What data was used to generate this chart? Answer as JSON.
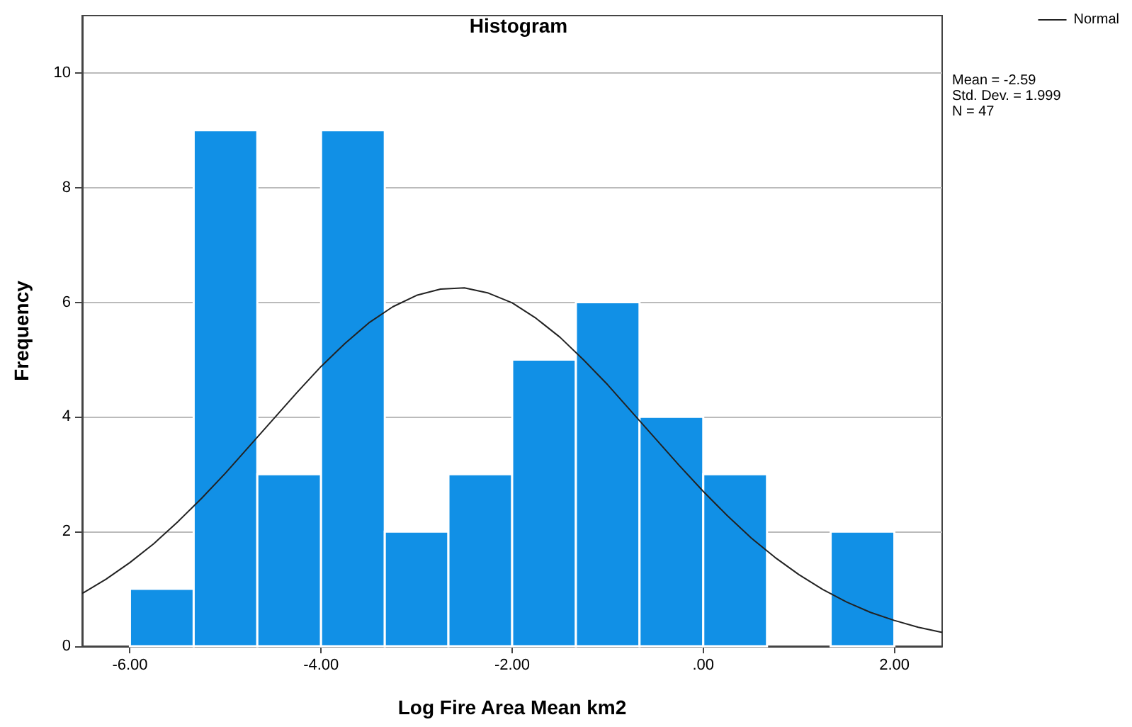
{
  "chart_data": {
    "type": "histogram",
    "title": "Histogram",
    "xlabel": "Log Fire Area Mean km2",
    "ylabel": "Frequency",
    "bins": [
      -6,
      -5.333,
      -4.667,
      -4,
      -3.333,
      -2.667,
      -2,
      -1.333,
      -0.667,
      0,
      0.667,
      1.333,
      2
    ],
    "values": [
      1,
      9,
      3,
      9,
      2,
      3,
      5,
      6,
      4,
      3,
      0,
      2
    ],
    "color": "#1190e6",
    "series": [
      {
        "type": "line",
        "name": "Normal",
        "color": "#222222",
        "x": [
          -6.5,
          -6.25,
          -6,
          -5.75,
          -5.5,
          -5.25,
          -5,
          -4.75,
          -4.5,
          -4.25,
          -4,
          -3.75,
          -3.5,
          -3.25,
          -3,
          -2.75,
          -2.5,
          -2.25,
          -2,
          -1.75,
          -1.5,
          -1.25,
          -1,
          -0.75,
          -0.5,
          -0.25,
          0,
          0.25,
          0.5,
          0.75,
          1,
          1.25,
          1.5,
          1.75,
          2,
          2.25,
          2.5
        ],
        "values": [
          0.92,
          1.17,
          1.46,
          1.79,
          2.17,
          2.58,
          3.02,
          3.49,
          3.96,
          4.43,
          4.88,
          5.28,
          5.64,
          5.92,
          6.12,
          6.23,
          6.25,
          6.16,
          5.99,
          5.72,
          5.39,
          4.99,
          4.56,
          4.09,
          3.62,
          3.15,
          2.7,
          2.28,
          1.89,
          1.55,
          1.25,
          0.99,
          0.77,
          0.59,
          0.45,
          0.33,
          0.24
        ]
      }
    ],
    "xlim": [
      -6.5,
      2.5
    ],
    "xticks": [
      {
        "value": -6,
        "label": "-6.00"
      },
      {
        "value": -4,
        "label": "-4.00"
      },
      {
        "value": -2,
        "label": "-2.00"
      },
      {
        "value": 0,
        "label": ".00"
      },
      {
        "value": 2,
        "label": "2.00"
      }
    ],
    "ylim": [
      0,
      11
    ],
    "yticks": [
      0,
      2,
      4,
      6,
      8,
      10
    ],
    "grid": "y",
    "legend": "top right",
    "marker": "none",
    "line_style": "solid",
    "annotations": [
      "Mean = -2.59",
      "Std. Dev. = 1.999",
      "N = 47"
    ]
  }
}
